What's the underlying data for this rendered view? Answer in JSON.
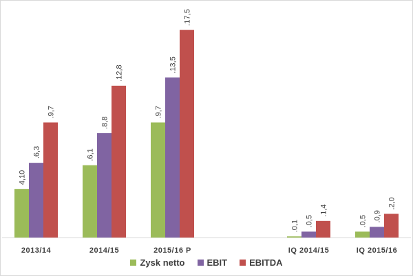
{
  "chart_data": {
    "type": "bar",
    "categories": [
      "2013/14",
      "2014/15",
      "2015/16  P",
      "",
      "IQ 2014/15",
      "IQ 2015/16"
    ],
    "series": [
      {
        "name": "Zysk netto",
        "color": "#9bbb59",
        "values": [
          4.1,
          6.1,
          9.7,
          null,
          0.1,
          0.5
        ],
        "labels": [
          "4,10",
          ".6,1",
          ".9,7",
          "",
          ".0,1",
          ".0,5"
        ]
      },
      {
        "name": "EBIT",
        "color": "#8064a2",
        "values": [
          6.3,
          8.8,
          13.5,
          null,
          0.5,
          0.9
        ],
        "labels": [
          ".6,3",
          ".8,8",
          ".13,5",
          "",
          ".0,5",
          ".0,9"
        ]
      },
      {
        "name": "EBITDA",
        "color": "#c0504d",
        "values": [
          9.7,
          12.8,
          17.5,
          null,
          1.4,
          2.0
        ],
        "labels": [
          ".9,7",
          ".12,8",
          ".17,5",
          "",
          ".1,4",
          ".2,0"
        ]
      }
    ],
    "ylim": [
      0,
      18
    ],
    "grid": false,
    "legend": "bottom"
  }
}
